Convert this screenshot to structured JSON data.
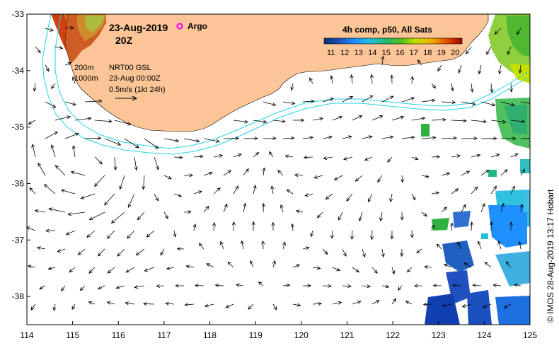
{
  "title": {
    "date": "23-Aug-2019",
    "hour": "20Z",
    "argo_label": "Argo"
  },
  "colorbar": {
    "title": "4h comp, p50, All Sats",
    "ticks": [
      "11",
      "12",
      "13",
      "14",
      "15",
      "16",
      "17",
      "18",
      "19",
      "20"
    ],
    "min": 10.5,
    "max": 20.5,
    "stops": [
      "#08306b",
      "#2050c0",
      "#1e90ff",
      "#20c0e0",
      "#20b870",
      "#50c020",
      "#c8e000",
      "#f0b000",
      "#e05000",
      "#a00000"
    ]
  },
  "legend": {
    "contour_200": "200m",
    "contour_1000": "1000m",
    "product": "NRT00 GSL",
    "valid_time": "23-Aug 00:00Z",
    "arrow_scale": "0.5m/s (1kt 24h)"
  },
  "axes": {
    "x_ticks": [
      "114",
      "115",
      "116",
      "117",
      "118",
      "119",
      "120",
      "121",
      "122",
      "123",
      "124",
      "125"
    ],
    "y_ticks": [
      "-33",
      "-34",
      "-35",
      "-36",
      "-37",
      "-38"
    ],
    "lon_range": [
      114,
      125
    ],
    "lat_range": [
      -38.5,
      -33
    ]
  },
  "credit": "© IMOS 28-Aug-2019 13:17 Hobart",
  "colors": {
    "land": "#fbc597",
    "contour": "#22d3e6",
    "arrow": "#000000",
    "argo": "#ff00ff"
  }
}
